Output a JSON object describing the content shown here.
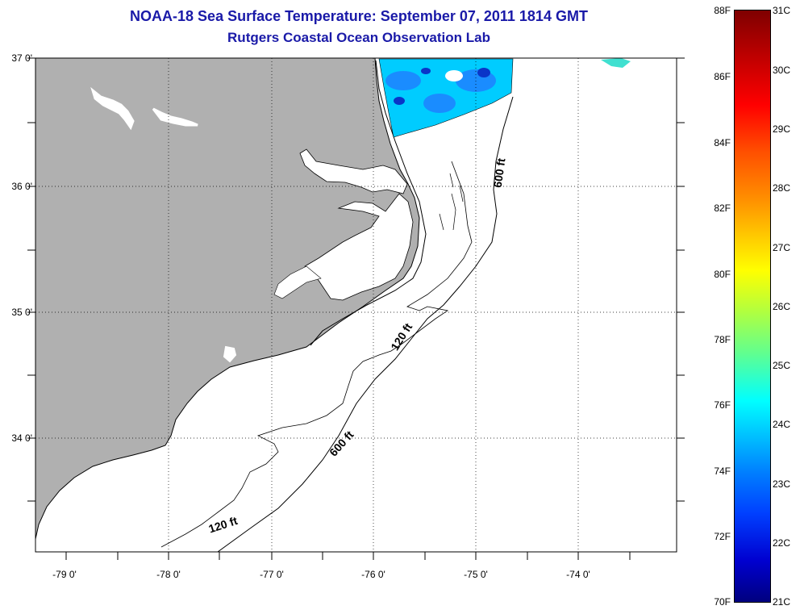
{
  "title": "NOAA-18 Sea Surface Temperature:  September 07, 2011 1814 GMT",
  "subtitle": "Rutgers Coastal Ocean Observation Lab",
  "map": {
    "lat_labels": [
      "37 0'",
      "36 0'",
      "35 0'",
      "34 0'"
    ],
    "lon_labels": [
      "-79 0'",
      "-78 0'",
      "-77 0'",
      "-76 0'",
      "-75 0'",
      "-74 0'"
    ],
    "contour_labels": [
      "600 ft",
      "120 ft",
      "600 ft",
      "120 ft"
    ],
    "land_color": "#b0b0b0",
    "sst_colors": [
      "#00ccff",
      "#1a8cff",
      "#0a35c8"
    ]
  },
  "colorbar": {
    "f_labels": [
      "88F",
      "86F",
      "84F",
      "82F",
      "80F",
      "78F",
      "76F",
      "74F",
      "72F",
      "70F"
    ],
    "c_labels": [
      "31C",
      "30C",
      "29C",
      "28C",
      "27C",
      "26C",
      "25C",
      "24C",
      "23C",
      "22C",
      "21C"
    ],
    "f_range": [
      70,
      88
    ],
    "c_range": [
      21,
      31
    ]
  }
}
